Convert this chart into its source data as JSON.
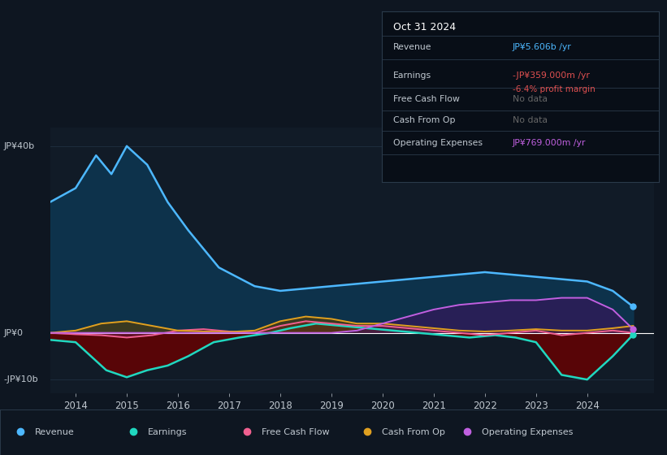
{
  "bg_color": "#0e1621",
  "plot_bg_color": "#111b27",
  "title": "Oct 31 2024",
  "info_box_rows": [
    {
      "label": "Revenue",
      "value": "JP¥5.606b /yr",
      "value_color": "#4db8ff"
    },
    {
      "label": "Earnings",
      "value": "-JP¥359.000m /yr",
      "value_color": "#e05050",
      "sub": "-6.4% profit margin",
      "sub_color": "#e05050"
    },
    {
      "label": "Free Cash Flow",
      "value": "No data",
      "value_color": "#666666"
    },
    {
      "label": "Cash From Op",
      "value": "No data",
      "value_color": "#666666"
    },
    {
      "label": "Operating Expenses",
      "value": "JP¥769.000m /yr",
      "value_color": "#c060e0"
    }
  ],
  "x_ticks": [
    2014,
    2015,
    2016,
    2017,
    2018,
    2019,
    2020,
    2021,
    2022,
    2023,
    2024
  ],
  "xlim": [
    2013.5,
    2025.3
  ],
  "ylim": [
    -13,
    44
  ],
  "y_ticks": [
    40,
    0,
    -10
  ],
  "y_tick_labels": [
    "JP¥40b",
    "JP¥0",
    "-JP¥10b"
  ],
  "revenue_x": [
    2013.5,
    2014.0,
    2014.4,
    2014.7,
    2015.0,
    2015.4,
    2015.8,
    2016.2,
    2016.8,
    2017.5,
    2018.0,
    2018.5,
    2019.0,
    2019.5,
    2020.0,
    2020.5,
    2021.0,
    2021.5,
    2022.0,
    2022.5,
    2023.0,
    2023.5,
    2024.0,
    2024.5,
    2024.9
  ],
  "revenue_y": [
    28,
    31,
    38,
    34,
    40,
    36,
    28,
    22,
    14,
    10,
    9,
    9.5,
    10,
    10.5,
    11,
    11.5,
    12,
    12.5,
    13,
    12.5,
    12,
    11.5,
    11,
    9,
    5.6
  ],
  "revenue_line_color": "#4db8ff",
  "revenue_fill_color": "#0d3550",
  "earnings_x": [
    2013.5,
    2014.0,
    2014.3,
    2014.6,
    2015.0,
    2015.4,
    2015.8,
    2016.2,
    2016.7,
    2017.2,
    2017.8,
    2018.2,
    2018.7,
    2019.2,
    2019.7,
    2020.2,
    2020.7,
    2021.2,
    2021.7,
    2022.2,
    2022.6,
    2023.0,
    2023.5,
    2024.0,
    2024.5,
    2024.9
  ],
  "earnings_y": [
    -1.5,
    -2,
    -5,
    -8,
    -9.5,
    -8,
    -7,
    -5,
    -2,
    -1,
    0,
    1,
    2,
    1.5,
    1,
    0.5,
    0,
    -0.5,
    -1,
    -0.5,
    -1,
    -2,
    -9,
    -10,
    -5,
    -0.36
  ],
  "earnings_line_color": "#20d8c0",
  "earnings_neg_fill": "#6b0000",
  "earnings_pos_fill": "#1a5030",
  "fcf_x": [
    2013.5,
    2014.0,
    2014.5,
    2015.0,
    2015.5,
    2016.0,
    2016.5,
    2017.0,
    2017.5,
    2018.0,
    2018.5,
    2019.0,
    2019.5,
    2020.0,
    2020.5,
    2021.0,
    2021.5,
    2022.0,
    2022.5,
    2023.0,
    2023.5,
    2024.0,
    2024.5,
    2024.9
  ],
  "fcf_y": [
    0,
    -0.3,
    -0.5,
    -1,
    -0.5,
    0.5,
    0.8,
    0.3,
    0,
    1.5,
    2.5,
    2.0,
    1.5,
    1.5,
    1.0,
    0.5,
    0,
    -0.5,
    0,
    0.5,
    -0.5,
    0,
    0.5,
    0
  ],
  "fcf_line_color": "#f06090",
  "fcf_fill_color": "#601030",
  "cfo_x": [
    2013.5,
    2014.0,
    2014.5,
    2015.0,
    2015.5,
    2016.0,
    2016.5,
    2017.0,
    2017.5,
    2018.0,
    2018.5,
    2019.0,
    2019.5,
    2020.0,
    2020.5,
    2021.0,
    2021.5,
    2022.0,
    2022.5,
    2023.0,
    2023.5,
    2024.0,
    2024.5,
    2024.9
  ],
  "cfo_y": [
    0,
    0.5,
    2.0,
    2.5,
    1.5,
    0.5,
    0.3,
    0.2,
    0.5,
    2.5,
    3.5,
    3.0,
    2.0,
    2.0,
    1.5,
    1.0,
    0.5,
    0.3,
    0.5,
    0.8,
    0.5,
    0.5,
    1.0,
    1.5
  ],
  "cfo_line_color": "#e0a020",
  "cfo_fill_color": "#604000",
  "opex_x": [
    2013.5,
    2014.0,
    2015.0,
    2016.0,
    2017.0,
    2018.0,
    2019.0,
    2019.5,
    2020.0,
    2020.5,
    2021.0,
    2021.5,
    2022.0,
    2022.5,
    2023.0,
    2023.5,
    2024.0,
    2024.5,
    2024.9
  ],
  "opex_y": [
    0,
    0,
    0,
    0,
    0,
    0,
    0,
    0.5,
    2,
    3.5,
    5,
    6,
    6.5,
    7,
    7,
    7.5,
    7.5,
    5,
    0.769
  ],
  "opex_line_color": "#c060e0",
  "opex_fill_color": "#401060",
  "zero_line_color": "#ffffff",
  "grid_color": "#1e2d3d",
  "text_color": "#c0c8d0",
  "legend": [
    {
      "label": "Revenue",
      "color": "#4db8ff"
    },
    {
      "label": "Earnings",
      "color": "#20d8c0"
    },
    {
      "label": "Free Cash Flow",
      "color": "#f06090"
    },
    {
      "label": "Cash From Op",
      "color": "#e0a020"
    },
    {
      "label": "Operating Expenses",
      "color": "#c060e0"
    }
  ]
}
